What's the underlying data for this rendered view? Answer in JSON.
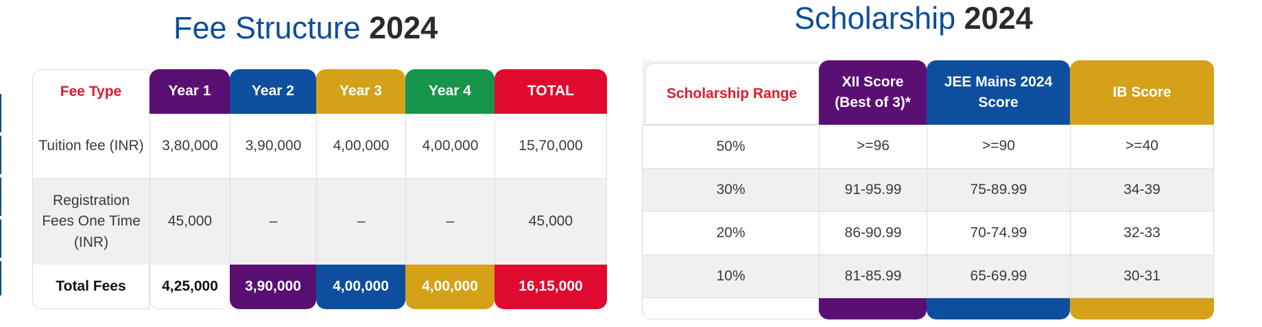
{
  "fee_title": {
    "part1": "Fee Structure",
    "part2": "2024"
  },
  "fee_table": {
    "headers": [
      "Fee Type",
      "Year 1",
      "Year 2",
      "Year 3",
      "Year 4",
      "TOTAL"
    ],
    "header_colors": [
      "#ffffff",
      "#5a0f73",
      "#0d4f9e",
      "#d4a118",
      "#17954b",
      "#e00a2e"
    ],
    "rows": [
      [
        "Tuition fee (INR)",
        "3,80,000",
        "3,90,000",
        "4,00,000",
        "4,00,000",
        "15,70,000"
      ],
      [
        "Registration Fees One Time (INR)",
        "45,000",
        "–",
        "–",
        "–",
        "45,000"
      ]
    ],
    "footer": [
      "Total Fees",
      "4,25,000",
      "3,90,000",
      "4,00,000",
      "4,00,000",
      "16,15,000"
    ]
  },
  "sch_title": {
    "part1": "Scholarship",
    "part2": "2024"
  },
  "sch_table": {
    "headers": [
      "Scholarship Range",
      "XII Score (Best of 3)*",
      "JEE Mains 2024 Score",
      "IB Score"
    ],
    "header_colors": [
      "#ffffff",
      "#5a0f73",
      "#0d4f9e",
      "#d4a118"
    ],
    "rows": [
      [
        "50%",
        ">=96",
        ">=90",
        ">=40"
      ],
      [
        "30%",
        "91-95.99",
        "75-89.99",
        "34-39"
      ],
      [
        "20%",
        "86-90.99",
        "70-74.99",
        "32-33"
      ],
      [
        "10%",
        "81-85.99",
        "65-69.99",
        "30-31"
      ]
    ]
  },
  "accent_colors": {
    "title_blue": "#0d4d98",
    "red_label": "#e01a2c"
  }
}
